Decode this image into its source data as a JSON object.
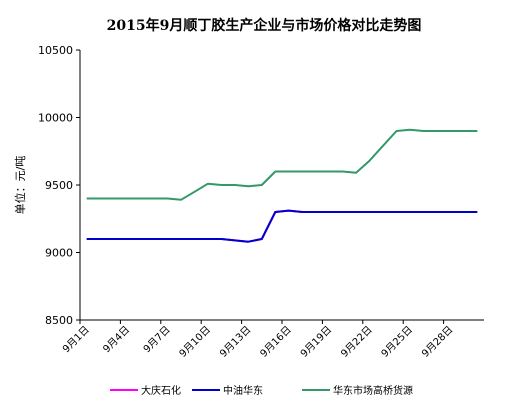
{
  "chart_data": {
    "type": "line",
    "title": "2015年9月顺丁胶生产企业与市场价格对比走势图",
    "y_label": "单位：元/吨",
    "categories": [
      "9月1日",
      null,
      null,
      "9月4日",
      null,
      null,
      "9月7日",
      null,
      null,
      "9月10日",
      null,
      null,
      "9月13日",
      null,
      null,
      "9月16日",
      null,
      null,
      "9月19日",
      null,
      null,
      "9月22日",
      null,
      null,
      "9月25日",
      null,
      null,
      "9月28日",
      null,
      null
    ],
    "series": [
      {
        "name": "大庆石化",
        "color": "#ff00ff",
        "values": [
          9100,
          9100,
          9100,
          9100,
          9100,
          9100,
          9100,
          9100,
          9100,
          9100,
          9100,
          9090,
          9080,
          9100,
          9300,
          9310,
          9300,
          9300,
          9300,
          9300,
          9300,
          9300,
          9300,
          9300,
          9300,
          9300,
          9300,
          9300,
          9300,
          9300
        ]
      },
      {
        "name": "中油华东",
        "color": "#0000cc",
        "values": [
          9100,
          9100,
          9100,
          9100,
          9100,
          9100,
          9100,
          9100,
          9100,
          9100,
          9100,
          9090,
          9080,
          9100,
          9300,
          9310,
          9300,
          9300,
          9300,
          9300,
          9300,
          9300,
          9300,
          9300,
          9300,
          9300,
          9300,
          9300,
          9300,
          9300
        ]
      },
      {
        "name": "华东市场高桥货源",
        "color": "#339966",
        "values": [
          9400,
          9400,
          9400,
          9400,
          9400,
          9400,
          9400,
          9390,
          9450,
          9510,
          9500,
          9500,
          9490,
          9500,
          9600,
          9600,
          9600,
          9600,
          9600,
          9600,
          9590,
          9680,
          9790,
          9900,
          9910,
          9900,
          9900,
          9900,
          9900,
          9900
        ]
      }
    ],
    "ylim": [
      8500,
      10500
    ],
    "yticks": [
      8500,
      9000,
      9500,
      10000,
      10500
    ]
  }
}
